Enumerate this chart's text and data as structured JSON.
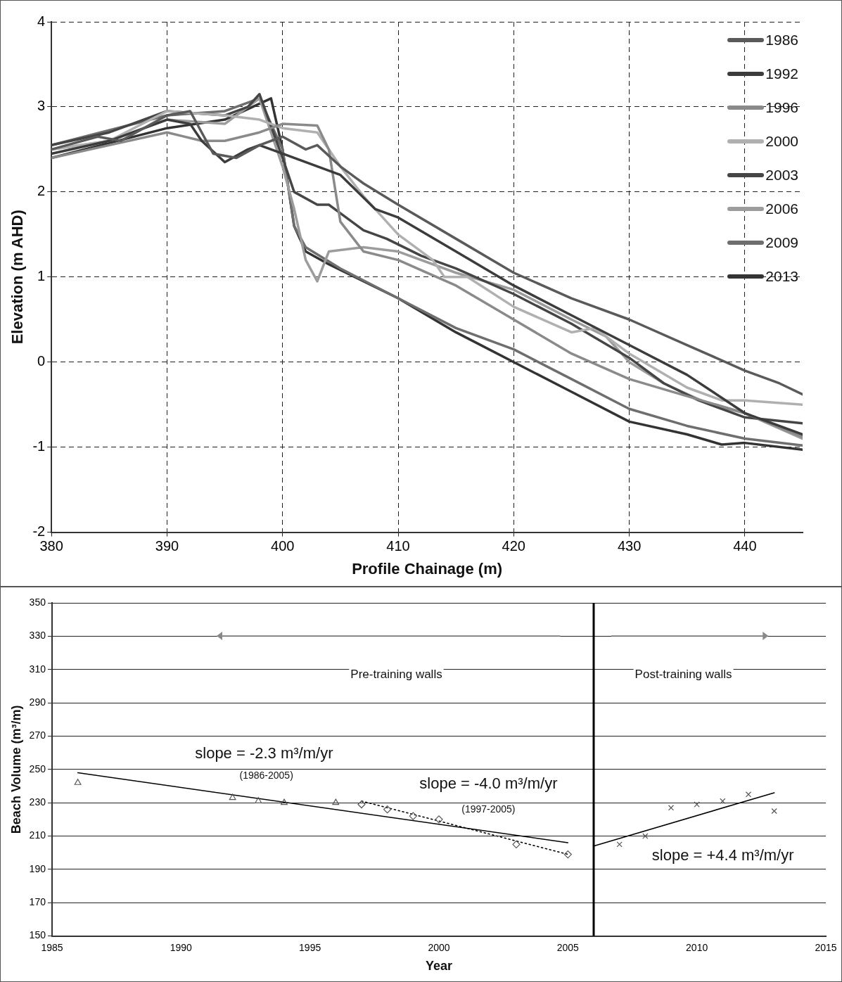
{
  "chart_data": [
    {
      "type": "line",
      "xlabel": "Profile Chainage (m)",
      "ylabel": "Elevation (m AHD)",
      "xlim": [
        380,
        445
      ],
      "xticks": [
        380,
        390,
        400,
        410,
        420,
        430,
        440
      ],
      "ylim": [
        -2,
        4
      ],
      "yticks": [
        -2,
        -1,
        0,
        1,
        2,
        3,
        4
      ],
      "grid": true,
      "legend": "top right",
      "marker": "none",
      "series": [
        {
          "name": "1986",
          "color": "#5a5a5a",
          "x": [
            380,
            384,
            386,
            390,
            392,
            393,
            394,
            396,
            398,
            400,
            402,
            403,
            405,
            407,
            410,
            415,
            420,
            425,
            430,
            435,
            440,
            443,
            445
          ],
          "values": [
            2.5,
            2.65,
            2.6,
            2.9,
            2.95,
            2.7,
            2.45,
            2.4,
            2.55,
            2.65,
            2.5,
            2.55,
            2.3,
            2.1,
            1.85,
            1.45,
            1.05,
            0.75,
            0.5,
            0.2,
            -0.1,
            -0.25,
            -0.38
          ]
        },
        {
          "name": "1992",
          "color": "#3c3c3c",
          "x": [
            380,
            385,
            390,
            392,
            393,
            395,
            397,
            398,
            400,
            405,
            408,
            410,
            415,
            420,
            425,
            430,
            435,
            440,
            445
          ],
          "values": [
            2.45,
            2.6,
            2.85,
            2.8,
            2.6,
            2.35,
            2.5,
            2.55,
            2.45,
            2.2,
            1.8,
            1.7,
            1.3,
            0.9,
            0.55,
            0.2,
            -0.15,
            -0.6,
            -0.85
          ]
        },
        {
          "name": "1996",
          "color": "#8a8a8a",
          "x": [
            380,
            385,
            390,
            393,
            395,
            398,
            400,
            403,
            404,
            405,
            407,
            410,
            415,
            420,
            425,
            430,
            435,
            440,
            445
          ],
          "values": [
            2.4,
            2.55,
            2.7,
            2.6,
            2.6,
            2.7,
            2.8,
            2.78,
            2.5,
            1.65,
            1.3,
            1.2,
            0.9,
            0.5,
            0.1,
            -0.2,
            -0.4,
            -0.6,
            -0.88
          ]
        },
        {
          "name": "2000",
          "color": "#b0b0b0",
          "x": [
            380,
            385,
            390,
            395,
            398,
            400,
            403,
            405,
            407,
            410,
            413,
            414,
            416,
            420,
            425,
            427,
            430,
            435,
            438,
            440,
            445
          ],
          "values": [
            2.5,
            2.6,
            2.95,
            2.9,
            2.85,
            2.75,
            2.7,
            2.3,
            1.95,
            1.5,
            1.2,
            1.0,
            1.0,
            0.65,
            0.35,
            0.4,
            0.1,
            -0.3,
            -0.45,
            -0.45,
            -0.5
          ]
        },
        {
          "name": "2003",
          "color": "#454545",
          "x": [
            380,
            385,
            390,
            395,
            397,
            398,
            400,
            401,
            403,
            404,
            405,
            407,
            409,
            412,
            415,
            420,
            425,
            430,
            433,
            436,
            440,
            445
          ],
          "values": [
            2.55,
            2.7,
            2.95,
            2.9,
            3.0,
            3.15,
            2.4,
            2.0,
            1.85,
            1.85,
            1.75,
            1.55,
            1.45,
            1.25,
            1.1,
            0.8,
            0.45,
            0.05,
            -0.25,
            -0.45,
            -0.65,
            -0.72
          ]
        },
        {
          "name": "2006",
          "color": "#9c9c9c",
          "x": [
            380,
            385,
            390,
            395,
            398,
            400,
            401,
            402,
            403,
            404,
            407,
            410,
            415,
            420,
            425,
            428,
            430,
            433,
            437,
            440,
            445
          ],
          "values": [
            2.5,
            2.6,
            2.85,
            2.8,
            3.1,
            2.3,
            1.8,
            1.2,
            0.95,
            1.3,
            1.35,
            1.3,
            1.05,
            0.85,
            0.5,
            0.3,
            0.0,
            -0.25,
            -0.5,
            -0.6,
            -0.9
          ]
        },
        {
          "name": "2009",
          "color": "#6e6e6e",
          "x": [
            380,
            390,
            395,
            398,
            400,
            401,
            402,
            405,
            410,
            415,
            420,
            425,
            430,
            435,
            440,
            445
          ],
          "values": [
            2.55,
            2.9,
            2.95,
            3.1,
            2.5,
            1.6,
            1.35,
            1.1,
            0.75,
            0.4,
            0.15,
            -0.2,
            -0.55,
            -0.75,
            -0.9,
            -0.98
          ]
        },
        {
          "name": "2013",
          "color": "#333333",
          "x": [
            380,
            390,
            395,
            399,
            400,
            401,
            402,
            404,
            410,
            415,
            420,
            425,
            430,
            435,
            438,
            440,
            445
          ],
          "values": [
            2.4,
            2.75,
            2.85,
            3.1,
            2.5,
            1.6,
            1.3,
            1.15,
            0.75,
            0.35,
            0.0,
            -0.35,
            -0.7,
            -0.85,
            -0.97,
            -0.95,
            -1.03
          ]
        }
      ]
    },
    {
      "type": "scatter",
      "xlabel": "Year",
      "ylabel": "Beach Volume (m³/m)",
      "xlim": [
        1985,
        2015
      ],
      "xticks": [
        1985,
        1990,
        1995,
        2000,
        2005,
        2010,
        2015
      ],
      "ylim": [
        150,
        350
      ],
      "yticks": [
        150,
        170,
        190,
        210,
        230,
        250,
        270,
        290,
        310,
        330,
        350
      ],
      "grid": "y",
      "ref_lines": [
        {
          "axis": "x",
          "value": 2006,
          "color": "#000000"
        }
      ],
      "annotations": [
        "Pre-training walls",
        "Post-training walls",
        "slope = -2.3 m³/m/yr",
        "(1986-2005)",
        "slope = -4.0 m³/m/yr",
        "(1997-2005)",
        "slope = +4.4 m³/m/yr"
      ],
      "series": [
        {
          "type": "scatter",
          "marker": "triangle",
          "color": "#555555",
          "x": [
            1986,
            1992,
            1993,
            1994,
            1996
          ],
          "values": [
            242,
            233,
            231,
            230,
            230
          ]
        },
        {
          "type": "scatter",
          "marker": "diamond",
          "color": "#555555",
          "x": [
            1997,
            1998,
            1999,
            2000,
            2003,
            2005
          ],
          "values": [
            229,
            226,
            222,
            220,
            205,
            199
          ]
        },
        {
          "type": "scatter",
          "marker": "cross",
          "color": "#555555",
          "x": [
            2007,
            2008,
            2009,
            2010,
            2011,
            2012,
            2013
          ],
          "values": [
            205,
            210,
            227,
            229,
            231,
            235,
            225
          ]
        },
        {
          "type": "line",
          "marker": "none",
          "color": "#000000",
          "x": [
            1986,
            2005
          ],
          "values": [
            248,
            206
          ]
        },
        {
          "type": "line",
          "marker": "none",
          "line_style": "dotted",
          "color": "#000000",
          "x": [
            1997,
            2005
          ],
          "values": [
            231,
            199
          ]
        },
        {
          "type": "line",
          "marker": "none",
          "color": "#000000",
          "x": [
            2006,
            2013
          ],
          "values": [
            204,
            236
          ]
        }
      ]
    }
  ]
}
